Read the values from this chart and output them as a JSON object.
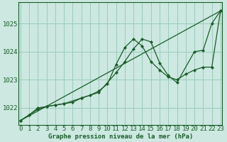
{
  "title": "Graphe pression niveau de la mer (hPa)",
  "bg_color": "#cce8e0",
  "grid_color": "#99ccbb",
  "line_color": "#1a5c2a",
  "marker_color": "#1a5c2a",
  "x_min": 0,
  "x_max": 23,
  "y_min": 1021.4,
  "y_max": 1025.75,
  "yticks": [
    1022,
    1023,
    1024,
    1025
  ],
  "series": [
    {
      "x": [
        0,
        1,
        2,
        3,
        4,
        5,
        6,
        7,
        8,
        9,
        10,
        11,
        12,
        13,
        14,
        15,
        16,
        17,
        18,
        19,
        20,
        21,
        22,
        23
      ],
      "y": [
        1021.55,
        1021.75,
        1021.95,
        1022.05,
        1022.1,
        1022.15,
        1022.2,
        1022.35,
        1022.45,
        1022.6,
        1022.85,
        1023.55,
        1024.15,
        1024.45,
        1024.2,
        1023.65,
        1023.35,
        1023.1,
        1023.0,
        1023.2,
        1023.35,
        1023.45,
        1023.45,
        1025.45
      ]
    },
    {
      "x": [
        0,
        1,
        2,
        3,
        4,
        5,
        7,
        9,
        11,
        12,
        13,
        14,
        15,
        16,
        17,
        18,
        20,
        21,
        22,
        23
      ],
      "y": [
        1021.55,
        1021.75,
        1022.0,
        1022.05,
        1022.1,
        1022.15,
        1022.35,
        1022.55,
        1023.25,
        1023.65,
        1024.1,
        1024.45,
        1024.35,
        1023.6,
        1023.15,
        1022.9,
        1024.0,
        1024.05,
        1025.0,
        1025.45
      ]
    },
    {
      "x": [
        0,
        23
      ],
      "y": [
        1021.55,
        1025.45
      ]
    }
  ],
  "xlabel_fontsize": 6.5,
  "tick_fontsize": 6.5,
  "title_fontsize": 7
}
